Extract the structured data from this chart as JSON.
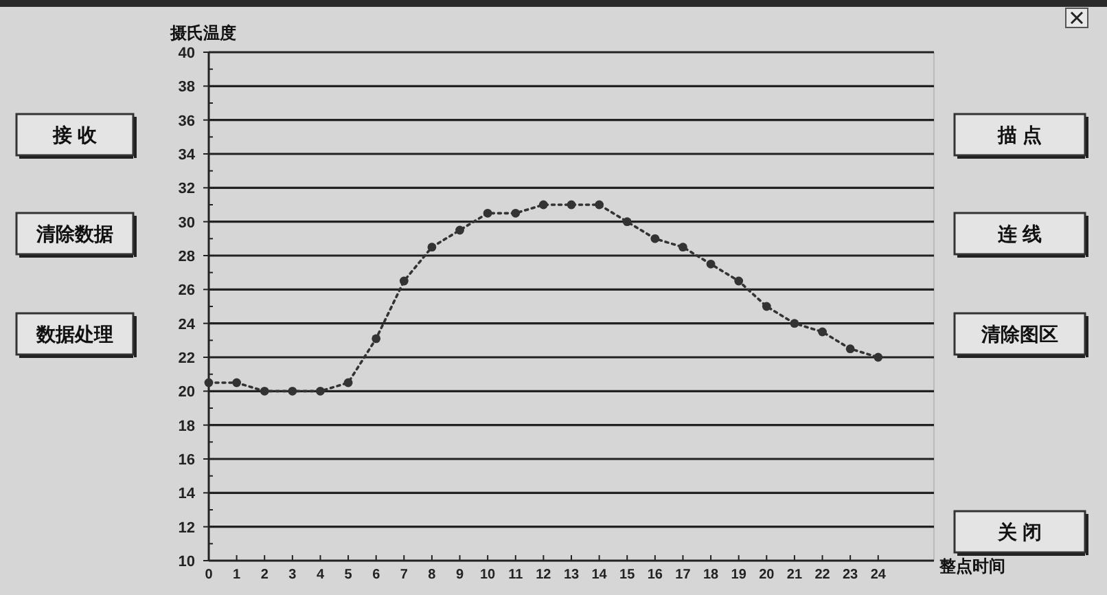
{
  "chart_data": [
    {
      "type": "line",
      "xlabel": "整点时间",
      "ylabel": "摄氏温度",
      "x": [
        0,
        1,
        2,
        3,
        4,
        5,
        6,
        7,
        8,
        9,
        10,
        11,
        12,
        13,
        14,
        15,
        16,
        17,
        18,
        19,
        20,
        21,
        22,
        23,
        24
      ],
      "series": [
        {
          "color": "#333333",
          "values": [
            20.5,
            20.5,
            20.0,
            20.0,
            20.0,
            20.5,
            23.1,
            26.5,
            28.5,
            29.5,
            30.5,
            30.5,
            31.0,
            31.0,
            31.0,
            30.0,
            29.0,
            28.5,
            27.5,
            26.5,
            25.0,
            24.0,
            23.5,
            22.5,
            22.0
          ]
        }
      ],
      "xlim": [
        0,
        26
      ],
      "xticks": [
        0,
        1,
        2,
        3,
        4,
        5,
        6,
        7,
        8,
        9,
        10,
        11,
        12,
        13,
        14,
        15,
        16,
        17,
        18,
        19,
        20,
        21,
        22,
        23,
        24
      ],
      "ylim": [
        10,
        40
      ],
      "yticks": [
        10,
        {
          "value": 11,
          "label": null
        },
        12,
        {
          "value": 13,
          "label": null
        },
        14,
        {
          "value": 15,
          "label": null
        },
        16,
        {
          "value": 17,
          "label": null
        },
        18,
        {
          "value": 19,
          "label": null
        },
        20,
        {
          "value": 21,
          "label": null
        },
        22,
        {
          "value": 23,
          "label": null
        },
        24,
        {
          "value": 25,
          "label": null
        },
        26,
        {
          "value": 27,
          "label": null
        },
        28,
        {
          "value": 29,
          "label": null
        },
        30,
        {
          "value": 31,
          "label": null
        },
        32,
        {
          "value": 33,
          "label": null
        },
        34,
        {
          "value": 35,
          "label": null
        },
        36,
        {
          "value": 37,
          "label": null
        },
        38,
        {
          "value": 39,
          "label": null
        },
        40
      ],
      "grid": "y",
      "marker": "circle",
      "line_style": "dotted"
    },
    {
      "type": "other",
      "annotations": [
        "接 收",
        "清除数据",
        "数据处理",
        "描 点",
        "连 线",
        "清除图区",
        "关 闭"
      ]
    }
  ]
}
